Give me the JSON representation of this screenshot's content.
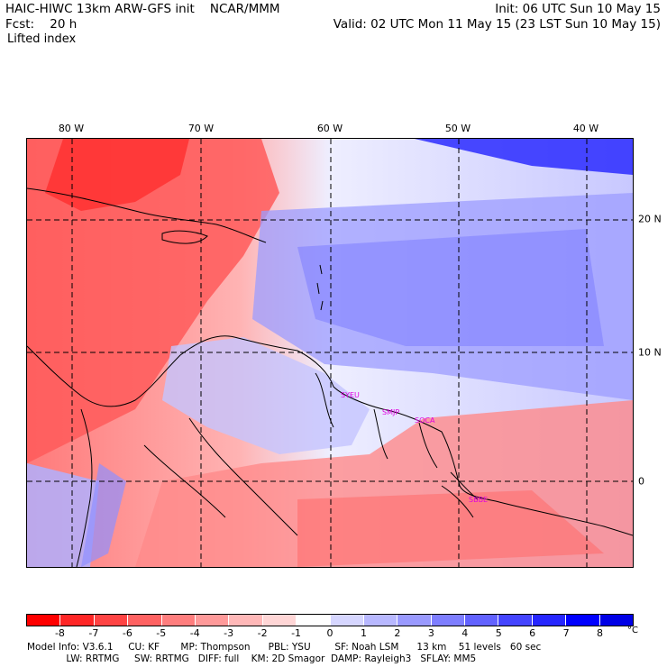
{
  "header": {
    "line1_left": "HAIC-HIWC 13km ARW-GFS init    NCAR/MMM",
    "line2_left": "Fcst:    20 h",
    "line3_left": "Lifted index",
    "line1_right": "Init: 06 UTC Sun 10 May 15",
    "line2_right": "Valid: 02 UTC Mon 11 May 15 (23 LST Sun 10 May 15)"
  },
  "map": {
    "longitude_labels": [
      "80 W",
      "70 W",
      "60 W",
      "50 W",
      "40 W"
    ],
    "latitude_labels": [
      "20 N",
      "10 N",
      "0"
    ],
    "station_labels": [
      "SYEU",
      "SMJP",
      "SOCA",
      "SBBE"
    ],
    "colors": {
      "station_label": "#e000e0",
      "grid_line": "#000000"
    }
  },
  "colorbar": {
    "tick_labels": [
      "-8",
      "-7",
      "-6",
      "-5",
      "-4",
      "-3",
      "-2",
      "-1",
      "0",
      "1",
      "2",
      "3",
      "4",
      "5",
      "6",
      "7",
      "8"
    ],
    "unit": "°C",
    "colors": [
      "#ff0000",
      "#ff2626",
      "#ff4444",
      "#ff6262",
      "#ff7e7e",
      "#ff9a9a",
      "#ffb8b8",
      "#ffd6d6",
      "#ffffff",
      "#d6d6ff",
      "#b8b8ff",
      "#9a9aff",
      "#7e7eff",
      "#6262ff",
      "#4444ff",
      "#2626ff",
      "#0000ff",
      "#0000e6"
    ]
  },
  "footer": {
    "line1": "Model Info: V3.6.1     CU: KF       MP: Thompson      PBL: YSU        SF: Noah LSM      13 km    51 levels   60 sec",
    "line2": "             LW: RRTMG     SW: RRTMG   DIFF: full    KM: 2D Smagor  DAMP: Rayleigh3   SFLAY: MM5"
  }
}
